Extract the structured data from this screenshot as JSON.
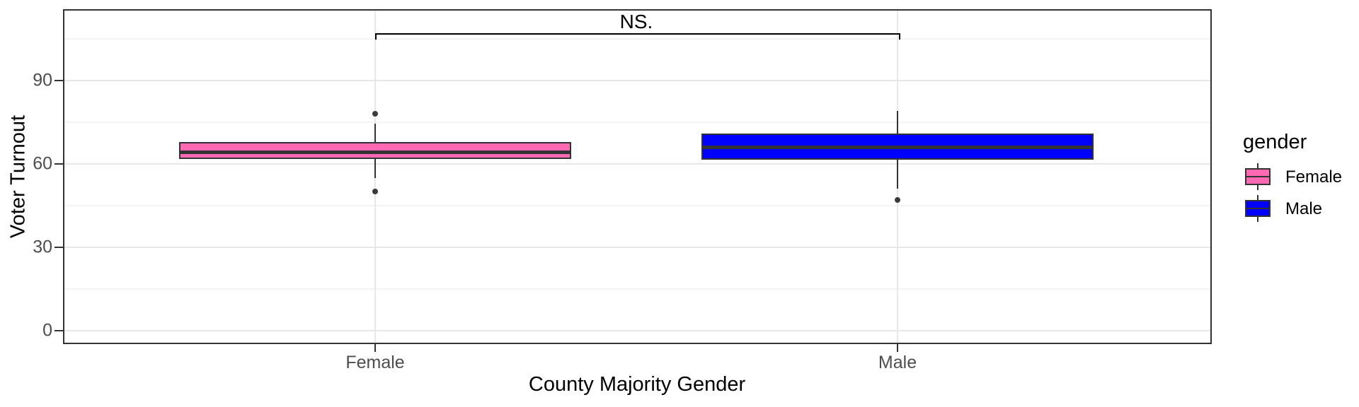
{
  "chart_data": {
    "type": "boxplot",
    "title": "",
    "xlabel": "County Majority Gender",
    "ylabel": "Voter Turnout",
    "categories": [
      "Female",
      "Male"
    ],
    "y_ticks": [
      0,
      30,
      60,
      90
    ],
    "y_minor_gridlines": [
      15,
      45,
      75,
      105
    ],
    "ylim": [
      -4.8,
      115.5
    ],
    "grid": "horizontal major+minor light gray; vertical major at each category",
    "significance_annotation": {
      "label": "NS.",
      "between": [
        "Female",
        "Male"
      ],
      "y": 107
    },
    "legend": {
      "title": "gender",
      "position": "right"
    },
    "series": [
      {
        "name": "Female",
        "fill": "#FF69B4",
        "q1": 61.7,
        "median": 64.3,
        "q3": 67.8,
        "whisker_low": 55,
        "whisker_high": 74.5,
        "outliers": [
          50,
          78
        ]
      },
      {
        "name": "Male",
        "fill": "#0000FF",
        "q1": 61.5,
        "median": 66,
        "q3": 71,
        "whisker_low": 51,
        "whisker_high": 79,
        "outliers": [
          47
        ]
      }
    ],
    "colors": {
      "box_border": "#333333",
      "median_line": "#333333",
      "whisker": "#333333",
      "outlier": "#3a3a3a",
      "gridline_major": "#e8e8e8",
      "gridline_minor": "#f3f3f3",
      "panel_border": "#333333",
      "axis_text": "#4d4d4d",
      "axis_title": "#000000"
    }
  }
}
